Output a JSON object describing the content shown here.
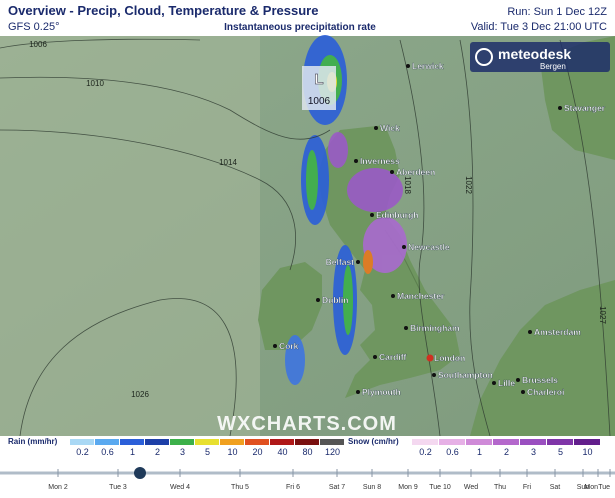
{
  "header": {
    "title": "Overview - Precip, Cloud, Temperature & Pressure",
    "model": "GFS 0.25°",
    "subtitle": "Instantaneous precipitation rate",
    "run": "Run: Sun 1 Dec 12Z",
    "valid": "Valid: Tue 3 Dec 21:00 UTC"
  },
  "logo": {
    "name": "meteodesk",
    "sub": "Bergen"
  },
  "map": {
    "pressure_center": {
      "symbol": "L",
      "value": "1006"
    },
    "isobars": [
      "1006",
      "1010",
      "1014",
      "1018",
      "1022",
      "1026",
      "1027"
    ],
    "cities": [
      "Lerwick",
      "Wick",
      "Stavanger",
      "Inverness",
      "Aberdeen",
      "Edinburgh",
      "Newcastle",
      "Belfast",
      "Dublin",
      "Manchester",
      "Birmingham",
      "Cork",
      "Cardiff",
      "London",
      "Southampton",
      "Plymouth",
      "Amsterdam",
      "Lille",
      "Brussels",
      "Charleroi"
    ],
    "watermark": "WXCHARTS.COM"
  },
  "legend": {
    "rain": {
      "label": "Rain (mm/hr)",
      "values": [
        0.2,
        0.6,
        1,
        2,
        3,
        5,
        10,
        20,
        40,
        80,
        120
      ]
    },
    "snow": {
      "label": "Snow (cm/hr)",
      "values": [
        0.2,
        0.6,
        1,
        2,
        3,
        5,
        10
      ]
    }
  },
  "timeline": {
    "days": [
      "Mon 2",
      "Tue 3",
      "Wed 4",
      "Thu 5",
      "Fri 6",
      "Sat 7",
      "Sun 8",
      "Mon 9",
      "Tue 10",
      "Wed",
      "Thu",
      "Fri",
      "Sat",
      "Sun",
      "Mon",
      "Tue"
    ]
  }
}
